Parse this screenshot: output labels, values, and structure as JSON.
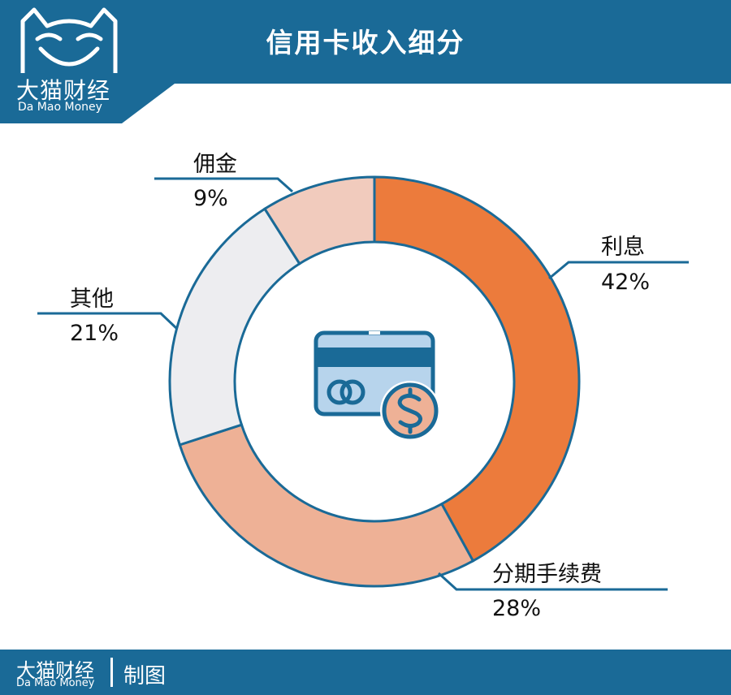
{
  "header": {
    "title": "信用卡收入细分"
  },
  "logo": {
    "cn": "大猫财经",
    "en": "Da Mao Money"
  },
  "footer": {
    "brand_cn": "大猫财经",
    "brand_en": "Da Mao Money",
    "credit": "制图"
  },
  "colors": {
    "brand": "#1a6a97",
    "interest": "#ec7b3c",
    "installment": "#eeb196",
    "other": "#ededf0",
    "commission": "#f1cbbd",
    "outline": "#1a6a97"
  },
  "center_icon": "credit-card-dollar-icon",
  "chart_data": {
    "type": "pie",
    "donut": true,
    "title": "信用卡收入细分",
    "slices": [
      {
        "label": "利息",
        "value": 42,
        "value_label": "42%",
        "color": "#ec7b3c"
      },
      {
        "label": "分期手续费",
        "value": 28,
        "value_label": "28%",
        "color": "#eeb196"
      },
      {
        "label": "其他",
        "value": 21,
        "value_label": "21%",
        "color": "#ededf0"
      },
      {
        "label": "佣金",
        "value": 9,
        "value_label": "9%",
        "color": "#f1cbbd"
      }
    ],
    "start": "top",
    "direction": "clockwise"
  }
}
